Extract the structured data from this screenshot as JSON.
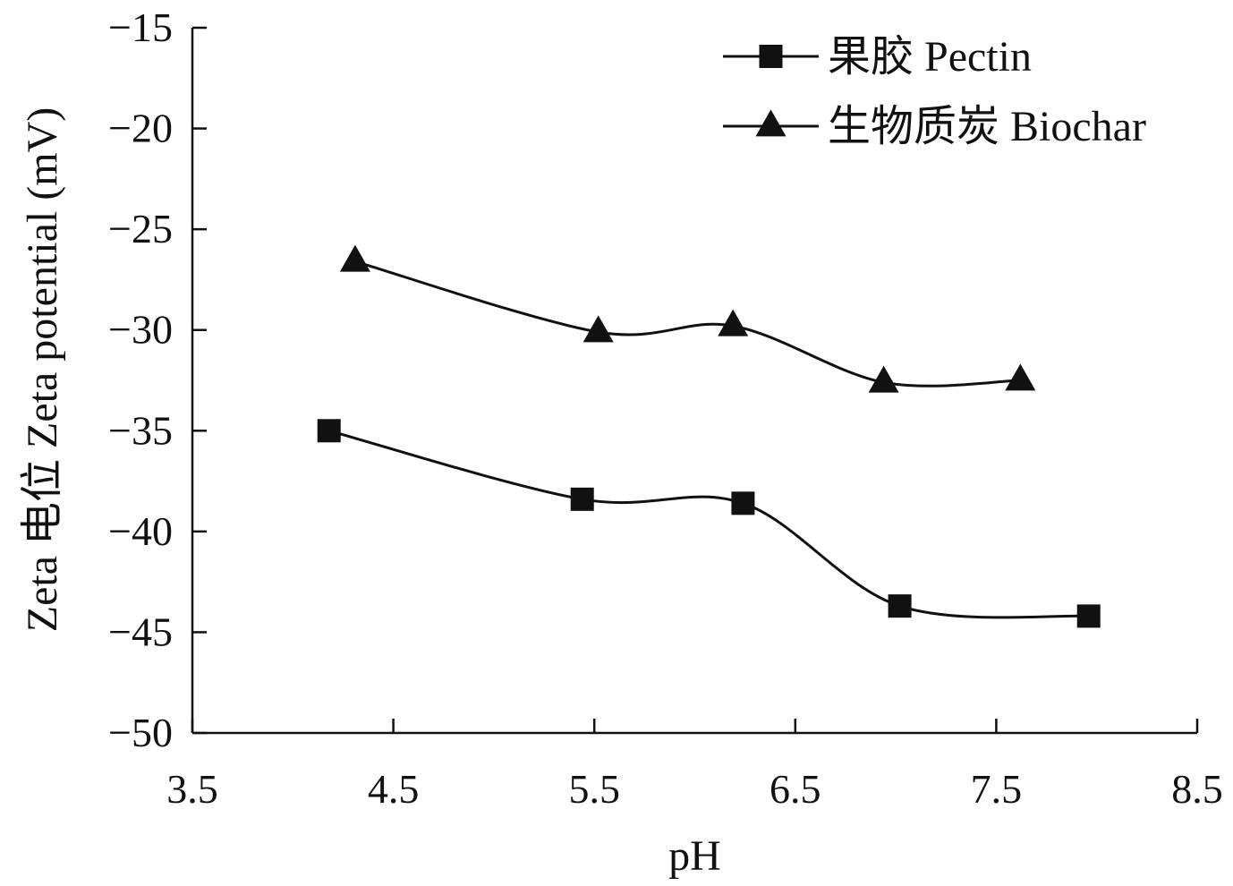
{
  "chart_data": {
    "type": "line",
    "xlabel": "pH",
    "ylabel": "Zeta 电位 Zeta potential (mV)",
    "xlim": [
      3.5,
      8.5
    ],
    "ylim": [
      -50,
      -15
    ],
    "xticks": [
      "3.5",
      "4.5",
      "5.5",
      "6.5",
      "7.5",
      "8.5"
    ],
    "yticks": [
      "−15",
      "−20",
      "−25",
      "−30",
      "−35",
      "−40",
      "−45",
      "−50"
    ],
    "grid": false,
    "legend_position": "top-right",
    "line_color": "#111111",
    "series": [
      {
        "name": "果胶 Pectin",
        "marker": "square",
        "x": [
          4.18,
          5.44,
          6.24,
          7.02,
          7.96
        ],
        "y": [
          -35.0,
          -38.4,
          -38.6,
          -43.7,
          -44.2
        ]
      },
      {
        "name": "生物质炭 Biochar",
        "marker": "triangle",
        "x": [
          4.31,
          5.52,
          6.19,
          6.94,
          7.62
        ],
        "y": [
          -26.6,
          -30.1,
          -29.8,
          -32.6,
          -32.5
        ]
      }
    ]
  }
}
